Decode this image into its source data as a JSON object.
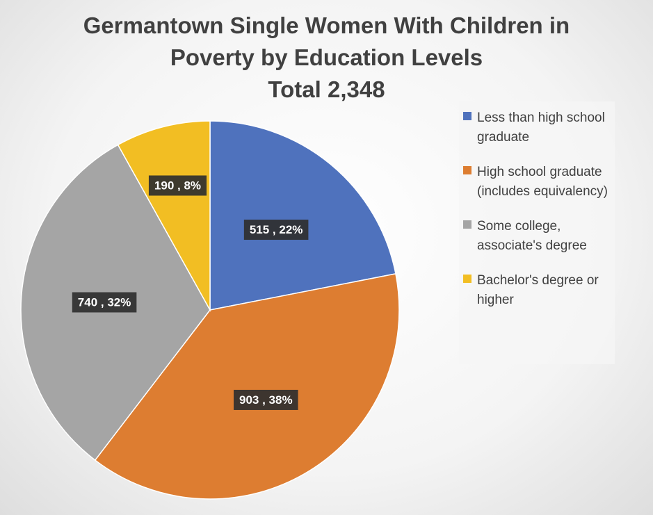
{
  "chart_data": {
    "type": "pie",
    "title_lines": [
      "Germantown Single Women With Children in",
      "Poverty by Education Levels",
      "Total 2,348"
    ],
    "categories": [
      "Less than high school graduate",
      "High school graduate (includes equivalency)",
      "Some college, associate's degree",
      "Bachelor's degree or higher"
    ],
    "values": [
      515,
      903,
      740,
      190
    ],
    "percent_labels": [
      "22%",
      "38%",
      "32%",
      "8%"
    ],
    "data_labels": [
      "515 , 22%",
      "903 , 38%",
      "740 , 32%",
      "190 , 8%"
    ],
    "colors": [
      "#4f72bd",
      "#dd7d31",
      "#a5a5a5",
      "#f2be23"
    ],
    "legend_position": "right",
    "start_angle": "12 o'clock, clockwise"
  },
  "legend": {
    "items": [
      {
        "label": "Less than high school graduate",
        "color": "#4f72bd"
      },
      {
        "label": "High school graduate (includes equivalency)",
        "color": "#dd7d31"
      },
      {
        "label": "Some college, associate's degree",
        "color": "#a5a5a5"
      },
      {
        "label": "Bachelor's degree or higher",
        "color": "#f2be23"
      }
    ]
  }
}
